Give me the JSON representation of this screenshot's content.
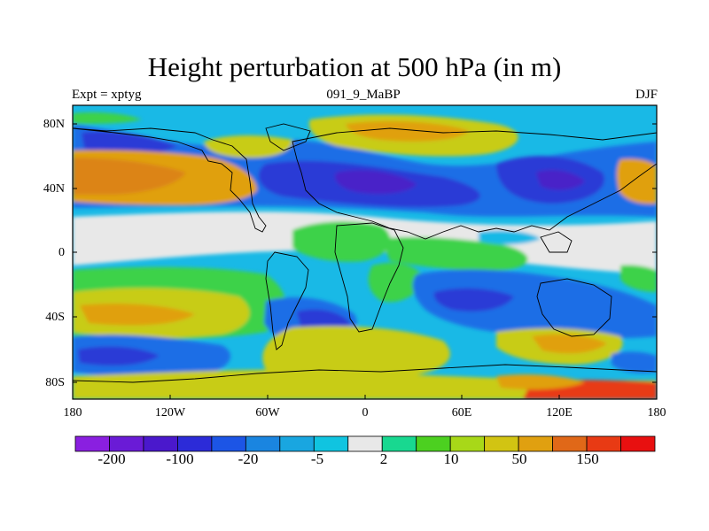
{
  "map": {
    "title": "Height perturbation at 500 hPa (in m)",
    "subtitle_left": "Expt = xptyg",
    "subtitle_center": "091_9_MaBP",
    "subtitle_right": "DJF",
    "lat_labels": [
      "80N",
      "40N",
      "0",
      "40S",
      "80S"
    ],
    "lon_labels": [
      "180",
      "120W",
      "60W",
      "0",
      "60E",
      "120E",
      "180"
    ]
  },
  "colorbar": {
    "colors": [
      "#8a1fe0",
      "#6a1bd6",
      "#4a18cc",
      "#2c2bd8",
      "#1c55e6",
      "#1a85e0",
      "#19a6e0",
      "#10c4e0",
      "#e8e8e8",
      "#18d890",
      "#4cd020",
      "#a8d818",
      "#d2c412",
      "#e0a010",
      "#e06818",
      "#e83a14",
      "#e81010"
    ],
    "labels": [
      "-200",
      "-100",
      "-20",
      "-5",
      "2",
      "10",
      "50",
      "150"
    ]
  },
  "palette": {
    "neutral": "#e8e8e8",
    "cyan": "#19b9e6",
    "blue_mid": "#1a6ee6",
    "blue_deep": "#2a3ad6",
    "purple": "#4a20c8",
    "green": "#3cd24a",
    "yellow": "#c8cc14",
    "orange": "#e0a010",
    "dark_orange": "#dc8418",
    "coast": "#000000"
  }
}
